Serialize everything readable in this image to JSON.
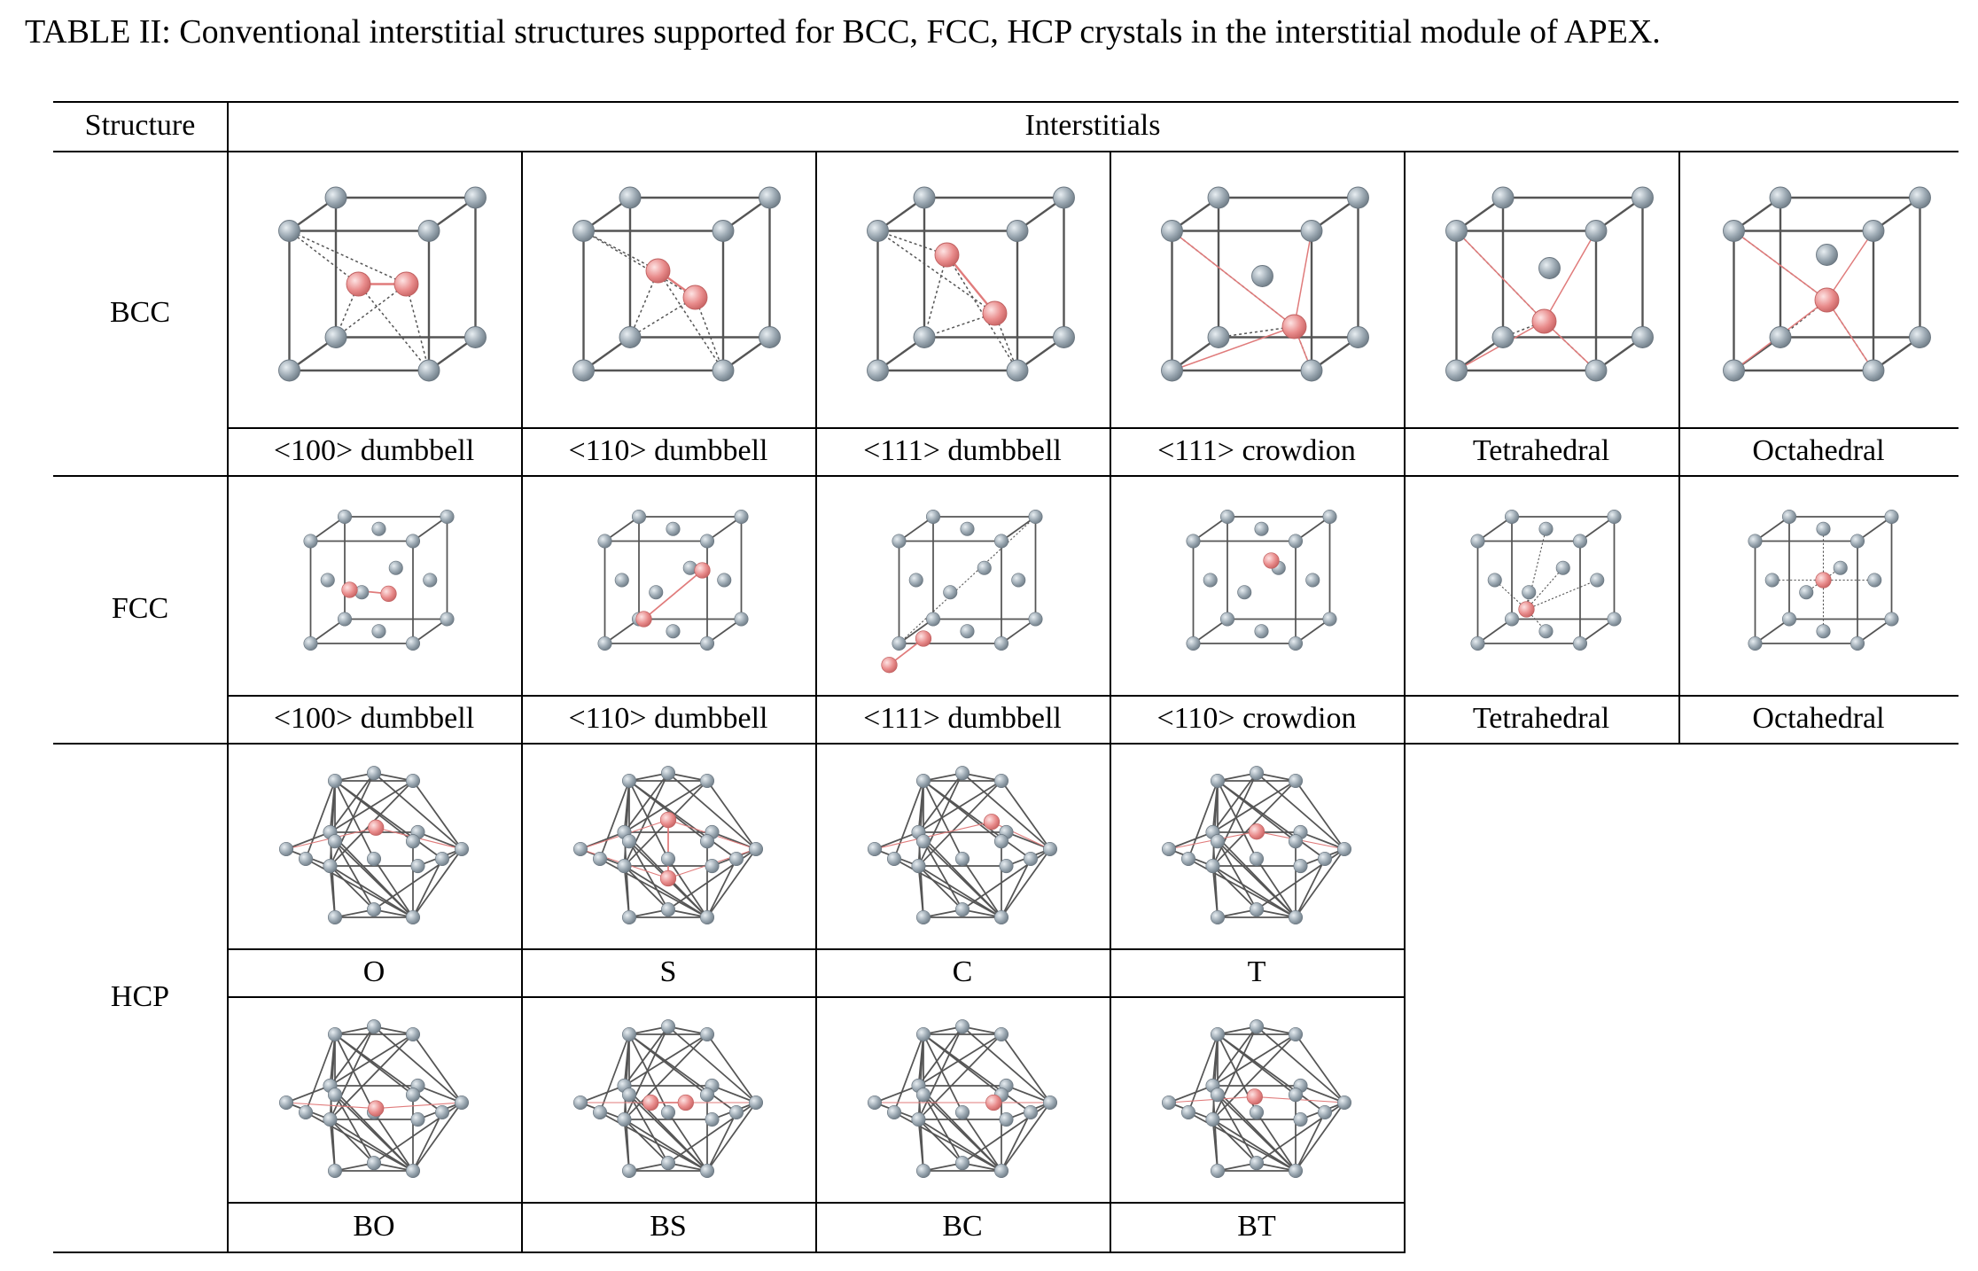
{
  "caption": "TABLE II: Conventional interstitial structures supported for BCC, FCC, HCP crystals in the interstitial module of APEX.",
  "header": {
    "structure": "Structure",
    "interstitials": "Interstitials"
  },
  "rows": {
    "bcc": {
      "label": "BCC",
      "items": [
        "<100> dumbbell",
        "<110> dumbbell",
        "<111> dumbbell",
        "<111> crowdion",
        "Tetrahedral",
        "Octahedral"
      ]
    },
    "fcc": {
      "label": "FCC",
      "items": [
        "<100> dumbbell",
        "<110> dumbbell",
        "<111> dumbbell",
        "<110> crowdion",
        "Tetrahedral",
        "Octahedral"
      ]
    },
    "hcp": {
      "label": "HCP",
      "items_top": [
        "O",
        "S",
        "C",
        "T"
      ],
      "items_bottom": [
        "BO",
        "BS",
        "BC",
        "BT"
      ]
    }
  },
  "colors": {
    "host_atom": "#9aa7b1",
    "interstitial_atom": "#e98c8c",
    "bond": "#555555",
    "interstitial_bond": "#e07b7b"
  }
}
